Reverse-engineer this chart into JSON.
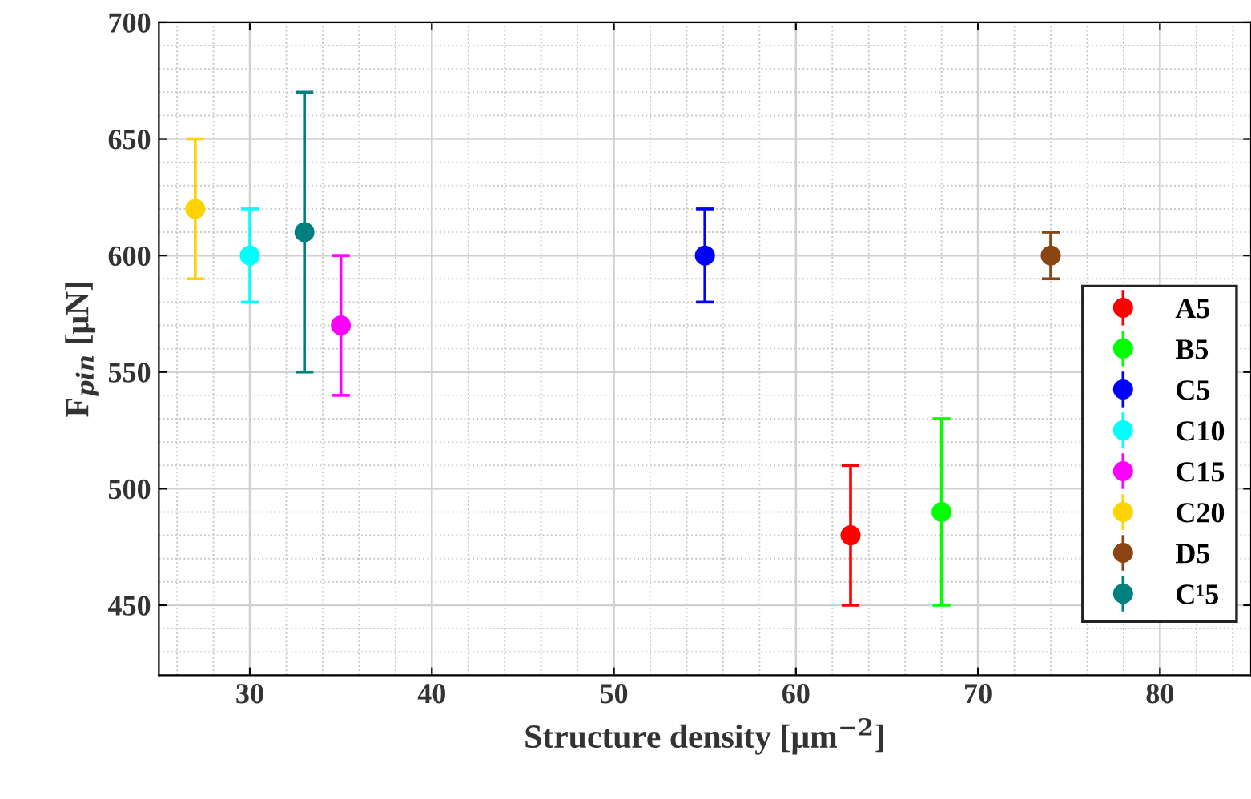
{
  "chart_data": {
    "type": "scatter",
    "xlabel": "Structure density [μm$^{−2}$]",
    "ylabel": "F$_{pin}$ [μN]",
    "xlim": [
      25,
      85
    ],
    "xticks": [
      30,
      40,
      50,
      60,
      70,
      80
    ],
    "ylim": [
      420,
      700
    ],
    "yticks": [
      450,
      500,
      550,
      600,
      650,
      700
    ],
    "grid": true,
    "legend": "right",
    "marker": "circle",
    "series": [
      {
        "name": "A5",
        "color": "#ff0000",
        "x": [
          63
        ],
        "values": [
          480
        ],
        "errors": [
          [
            450,
            510
          ]
        ]
      },
      {
        "name": "B5",
        "color": "#00ff00",
        "x": [
          68
        ],
        "values": [
          490
        ],
        "errors": [
          [
            450,
            530
          ]
        ]
      },
      {
        "name": "C5",
        "color": "#0000ff",
        "x": [
          55
        ],
        "values": [
          600
        ],
        "errors": [
          [
            580,
            620
          ]
        ]
      },
      {
        "name": "C10",
        "color": "#00ffff",
        "x": [
          30
        ],
        "values": [
          600
        ],
        "errors": [
          [
            580,
            620
          ]
        ]
      },
      {
        "name": "C15",
        "color": "#ff00ff",
        "x": [
          35
        ],
        "values": [
          570
        ],
        "errors": [
          [
            540,
            600
          ]
        ]
      },
      {
        "name": "C20",
        "color": "#ffd200",
        "x": [
          27
        ],
        "values": [
          620
        ],
        "errors": [
          [
            590,
            650
          ]
        ]
      },
      {
        "name": "D5",
        "color": "#8b4513",
        "x": [
          74
        ],
        "values": [
          600
        ],
        "errors": [
          [
            590,
            610
          ]
        ]
      },
      {
        "name": "C¹5",
        "color": "#008080",
        "x": [
          33
        ],
        "values": [
          610
        ],
        "errors": [
          [
            550,
            670
          ]
        ]
      }
    ]
  }
}
